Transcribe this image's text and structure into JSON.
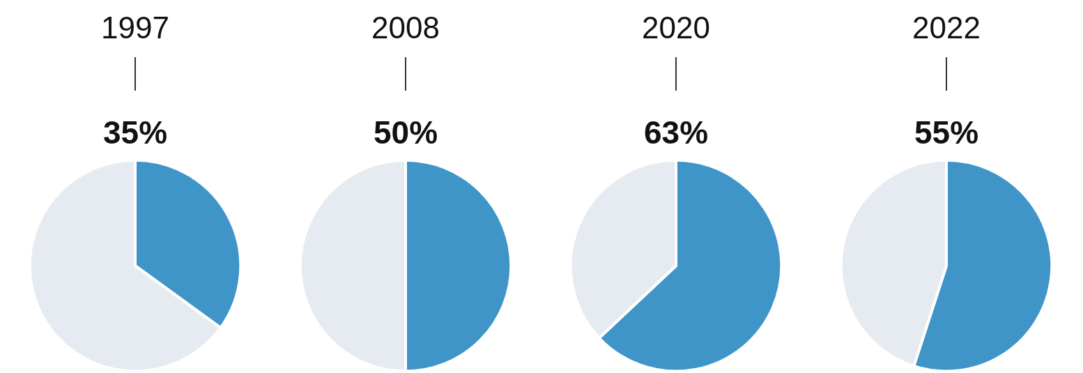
{
  "chart_data": [
    {
      "type": "pie",
      "title": "1997",
      "categories": [
        null,
        null
      ],
      "values": [
        35,
        65
      ],
      "colors": [
        "#3f95c8",
        "#e6ebf2"
      ],
      "value_labels": [
        "35%",
        null
      ]
    },
    {
      "type": "pie",
      "title": "2008",
      "categories": [
        null,
        null
      ],
      "values": [
        50,
        50
      ],
      "colors": [
        "#3f95c8",
        "#e6ebf2"
      ],
      "value_labels": [
        "50%",
        null
      ]
    },
    {
      "type": "pie",
      "title": "2020",
      "categories": [
        null,
        null
      ],
      "values": [
        63,
        37
      ],
      "colors": [
        "#3f95c8",
        "#e6ebf2"
      ],
      "value_labels": [
        "63%",
        null
      ]
    },
    {
      "type": "pie",
      "title": "2022",
      "categories": [
        null,
        null
      ],
      "values": [
        55,
        45
      ],
      "colors": [
        "#3f95c8",
        "#e6ebf2"
      ],
      "value_labels": [
        "55%",
        null
      ]
    }
  ]
}
